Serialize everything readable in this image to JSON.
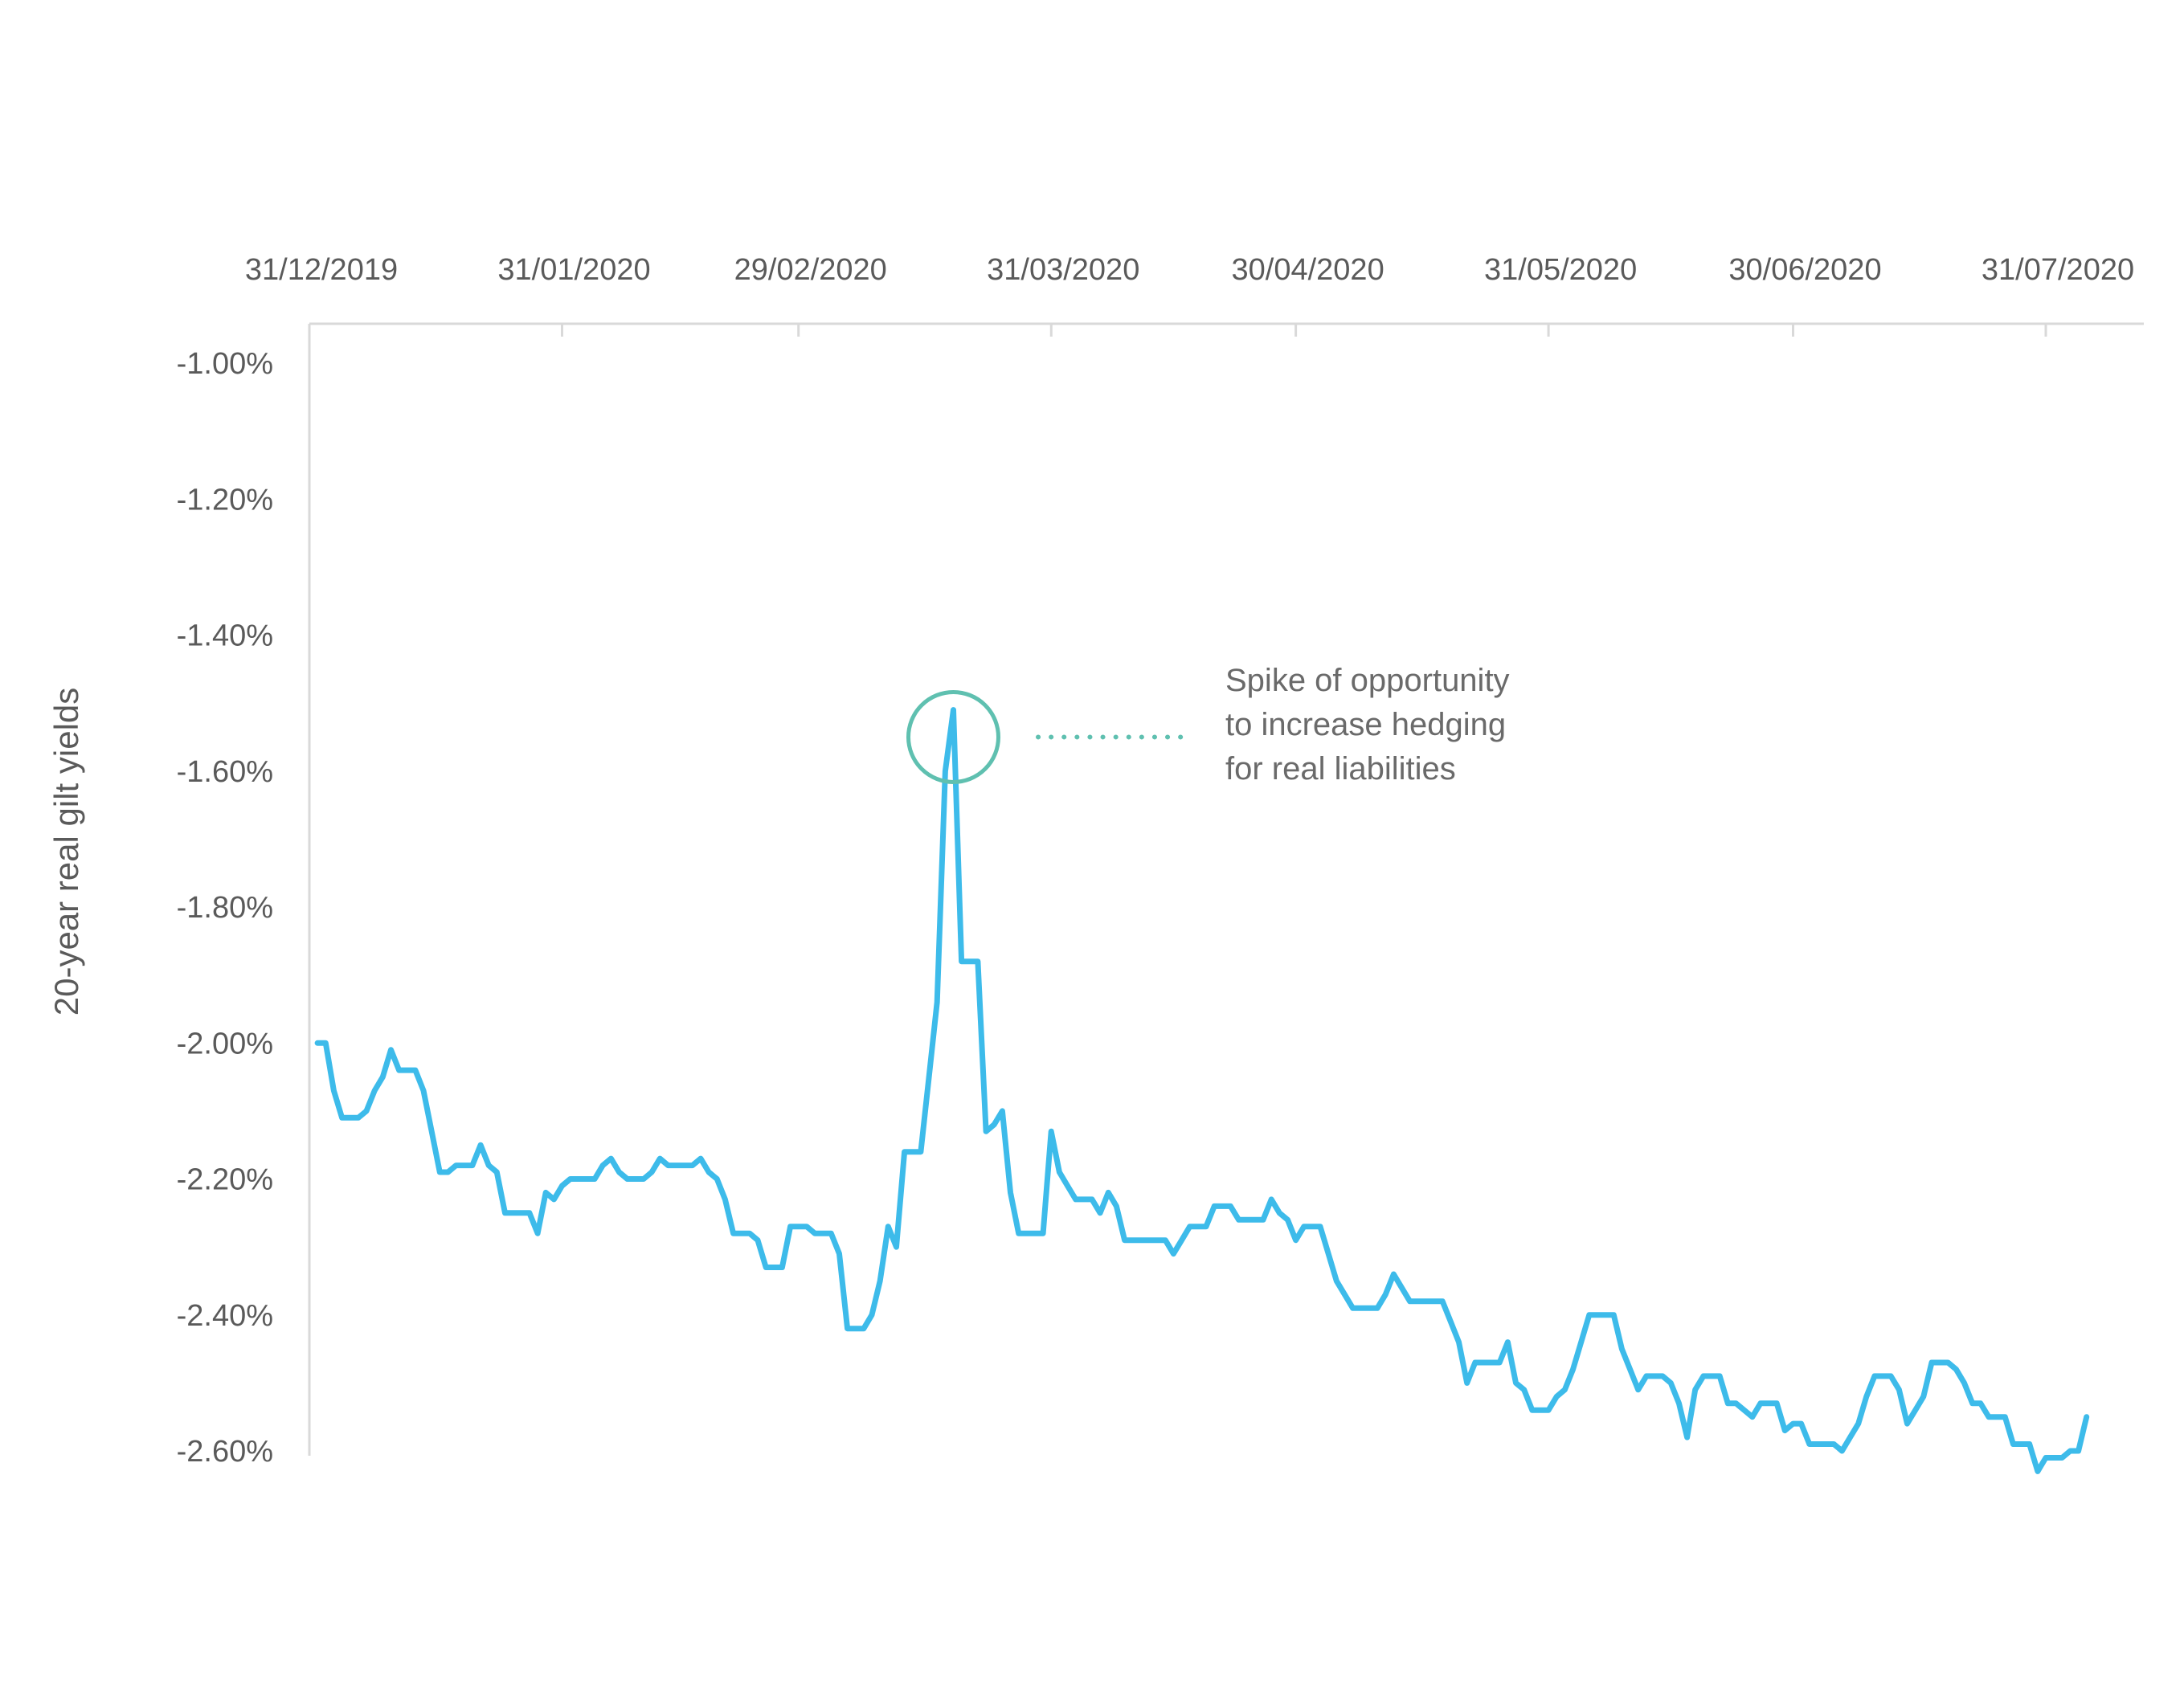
{
  "chart_data": {
    "type": "line",
    "title": "",
    "xlabel": "",
    "ylabel": "20-year real gilt yields",
    "x_axis_position": "top",
    "x_tick_labels": [
      "31/12/2019",
      "31/01/2020",
      "29/02/2020",
      "31/03/2020",
      "30/04/2020",
      "31/05/2020",
      "30/06/2020",
      "31/07/2020"
    ],
    "x_tick_days": [
      0,
      31,
      60,
      91,
      121,
      152,
      182,
      213
    ],
    "y_tick_labels": [
      "-1.00%",
      "-1.20%",
      "-1.40%",
      "-1.60%",
      "-1.80%",
      "-2.00%",
      "-2.20%",
      "-2.40%",
      "-2.60%"
    ],
    "y_tick_values": [
      -1.0,
      -1.2,
      -1.4,
      -1.6,
      -1.8,
      -2.0,
      -2.2,
      -2.4,
      -2.6
    ],
    "ylim": [
      -2.6,
      -1.0
    ],
    "grid": false,
    "legend": "none",
    "series": [
      {
        "color": "#3dbbea",
        "points": [
          [
            1,
            -2.0
          ],
          [
            2,
            -2.0
          ],
          [
            3,
            -2.07
          ],
          [
            4,
            -2.11
          ],
          [
            5,
            -2.11
          ],
          [
            6,
            -2.11
          ],
          [
            7,
            -2.1
          ],
          [
            8,
            -2.07
          ],
          [
            9,
            -2.05
          ],
          [
            10,
            -2.01
          ],
          [
            11,
            -2.04
          ],
          [
            12,
            -2.04
          ],
          [
            13,
            -2.04
          ],
          [
            14,
            -2.07
          ],
          [
            15,
            -2.13
          ],
          [
            16,
            -2.19
          ],
          [
            17,
            -2.19
          ],
          [
            18,
            -2.18
          ],
          [
            19,
            -2.18
          ],
          [
            20,
            -2.18
          ],
          [
            21,
            -2.15
          ],
          [
            22,
            -2.18
          ],
          [
            23,
            -2.19
          ],
          [
            24,
            -2.25
          ],
          [
            25,
            -2.25
          ],
          [
            26,
            -2.25
          ],
          [
            27,
            -2.25
          ],
          [
            28,
            -2.28
          ],
          [
            29,
            -2.22
          ],
          [
            30,
            -2.23
          ],
          [
            31,
            -2.21
          ],
          [
            32,
            -2.2
          ],
          [
            33,
            -2.2
          ],
          [
            34,
            -2.2
          ],
          [
            35,
            -2.2
          ],
          [
            36,
            -2.18
          ],
          [
            37,
            -2.17
          ],
          [
            38,
            -2.19
          ],
          [
            39,
            -2.2
          ],
          [
            40,
            -2.2
          ],
          [
            41,
            -2.2
          ],
          [
            42,
            -2.19
          ],
          [
            43,
            -2.17
          ],
          [
            44,
            -2.18
          ],
          [
            45,
            -2.18
          ],
          [
            46,
            -2.18
          ],
          [
            47,
            -2.18
          ],
          [
            48,
            -2.17
          ],
          [
            49,
            -2.19
          ],
          [
            50,
            -2.2
          ],
          [
            51,
            -2.23
          ],
          [
            52,
            -2.28
          ],
          [
            53,
            -2.28
          ],
          [
            54,
            -2.28
          ],
          [
            55,
            -2.29
          ],
          [
            56,
            -2.33
          ],
          [
            57,
            -2.33
          ],
          [
            58,
            -2.33
          ],
          [
            59,
            -2.27
          ],
          [
            60,
            -2.27
          ],
          [
            61,
            -2.27
          ],
          [
            62,
            -2.28
          ],
          [
            63,
            -2.28
          ],
          [
            64,
            -2.28
          ],
          [
            65,
            -2.31
          ],
          [
            66,
            -2.42
          ],
          [
            67,
            -2.42
          ],
          [
            68,
            -2.42
          ],
          [
            69,
            -2.4
          ],
          [
            70,
            -2.35
          ],
          [
            71,
            -2.27
          ],
          [
            72,
            -2.3
          ],
          [
            73,
            -2.16
          ],
          [
            74,
            -2.16
          ],
          [
            75,
            -2.16
          ],
          [
            76,
            -2.05
          ],
          [
            77,
            -1.94
          ],
          [
            78,
            -1.6
          ],
          [
            79,
            -1.51
          ],
          [
            80,
            -1.88
          ],
          [
            81,
            -1.88
          ],
          [
            82,
            -1.88
          ],
          [
            83,
            -2.13
          ],
          [
            84,
            -2.12
          ],
          [
            85,
            -2.1
          ],
          [
            86,
            -2.22
          ],
          [
            87,
            -2.28
          ],
          [
            88,
            -2.28
          ],
          [
            89,
            -2.28
          ],
          [
            90,
            -2.28
          ],
          [
            91,
            -2.13
          ],
          [
            92,
            -2.19
          ],
          [
            93,
            -2.21
          ],
          [
            94,
            -2.23
          ],
          [
            95,
            -2.23
          ],
          [
            96,
            -2.23
          ],
          [
            97,
            -2.25
          ],
          [
            98,
            -2.22
          ],
          [
            99,
            -2.24
          ],
          [
            100,
            -2.29
          ],
          [
            101,
            -2.29
          ],
          [
            102,
            -2.29
          ],
          [
            103,
            -2.29
          ],
          [
            104,
            -2.29
          ],
          [
            105,
            -2.29
          ],
          [
            106,
            -2.31
          ],
          [
            107,
            -2.29
          ],
          [
            108,
            -2.27
          ],
          [
            109,
            -2.27
          ],
          [
            110,
            -2.27
          ],
          [
            111,
            -2.24
          ],
          [
            112,
            -2.24
          ],
          [
            113,
            -2.24
          ],
          [
            114,
            -2.26
          ],
          [
            115,
            -2.26
          ],
          [
            116,
            -2.26
          ],
          [
            117,
            -2.26
          ],
          [
            118,
            -2.23
          ],
          [
            119,
            -2.25
          ],
          [
            120,
            -2.26
          ],
          [
            121,
            -2.29
          ],
          [
            122,
            -2.27
          ],
          [
            123,
            -2.27
          ],
          [
            124,
            -2.27
          ],
          [
            125,
            -2.31
          ],
          [
            126,
            -2.35
          ],
          [
            127,
            -2.37
          ],
          [
            128,
            -2.39
          ],
          [
            129,
            -2.39
          ],
          [
            130,
            -2.39
          ],
          [
            131,
            -2.39
          ],
          [
            132,
            -2.37
          ],
          [
            133,
            -2.34
          ],
          [
            134,
            -2.36
          ],
          [
            135,
            -2.38
          ],
          [
            136,
            -2.38
          ],
          [
            137,
            -2.38
          ],
          [
            138,
            -2.38
          ],
          [
            139,
            -2.38
          ],
          [
            140,
            -2.41
          ],
          [
            141,
            -2.44
          ],
          [
            142,
            -2.5
          ],
          [
            143,
            -2.47
          ],
          [
            144,
            -2.47
          ],
          [
            145,
            -2.47
          ],
          [
            146,
            -2.47
          ],
          [
            147,
            -2.44
          ],
          [
            148,
            -2.5
          ],
          [
            149,
            -2.51
          ],
          [
            150,
            -2.54
          ],
          [
            151,
            -2.54
          ],
          [
            152,
            -2.54
          ],
          [
            153,
            -2.52
          ],
          [
            154,
            -2.51
          ],
          [
            155,
            -2.48
          ],
          [
            156,
            -2.44
          ],
          [
            157,
            -2.4
          ],
          [
            158,
            -2.4
          ],
          [
            159,
            -2.4
          ],
          [
            160,
            -2.4
          ],
          [
            161,
            -2.45
          ],
          [
            162,
            -2.48
          ],
          [
            163,
            -2.51
          ],
          [
            164,
            -2.49
          ],
          [
            165,
            -2.49
          ],
          [
            166,
            -2.49
          ],
          [
            167,
            -2.5
          ],
          [
            168,
            -2.53
          ],
          [
            169,
            -2.58
          ],
          [
            170,
            -2.51
          ],
          [
            171,
            -2.49
          ],
          [
            172,
            -2.49
          ],
          [
            173,
            -2.49
          ],
          [
            174,
            -2.53
          ],
          [
            175,
            -2.53
          ],
          [
            176,
            -2.54
          ],
          [
            177,
            -2.55
          ],
          [
            178,
            -2.53
          ],
          [
            179,
            -2.53
          ],
          [
            180,
            -2.53
          ],
          [
            181,
            -2.57
          ],
          [
            182,
            -2.56
          ],
          [
            183,
            -2.56
          ],
          [
            184,
            -2.59
          ],
          [
            185,
            -2.59
          ],
          [
            186,
            -2.59
          ],
          [
            187,
            -2.59
          ],
          [
            188,
            -2.6
          ],
          [
            189,
            -2.58
          ],
          [
            190,
            -2.56
          ],
          [
            191,
            -2.52
          ],
          [
            192,
            -2.49
          ],
          [
            193,
            -2.49
          ],
          [
            194,
            -2.49
          ],
          [
            195,
            -2.51
          ],
          [
            196,
            -2.56
          ],
          [
            197,
            -2.54
          ],
          [
            198,
            -2.52
          ],
          [
            199,
            -2.47
          ],
          [
            200,
            -2.47
          ],
          [
            201,
            -2.47
          ],
          [
            202,
            -2.48
          ],
          [
            203,
            -2.5
          ],
          [
            204,
            -2.53
          ],
          [
            205,
            -2.53
          ],
          [
            206,
            -2.55
          ],
          [
            207,
            -2.55
          ],
          [
            208,
            -2.55
          ],
          [
            209,
            -2.59
          ],
          [
            210,
            -2.59
          ],
          [
            211,
            -2.59
          ],
          [
            212,
            -2.63
          ],
          [
            213,
            -2.61
          ],
          [
            214,
            -2.61
          ],
          [
            215,
            -2.61
          ],
          [
            216,
            -2.6
          ],
          [
            217,
            -2.6
          ],
          [
            218,
            -2.55
          ]
        ]
      }
    ],
    "annotation": {
      "text_lines": [
        "Spike of opportunity",
        "to increase hedging",
        "for real liabilities"
      ],
      "color": "#5fc0b0",
      "text_color": "#6a6a6a",
      "target_point": [
        79,
        -1.55
      ]
    }
  }
}
